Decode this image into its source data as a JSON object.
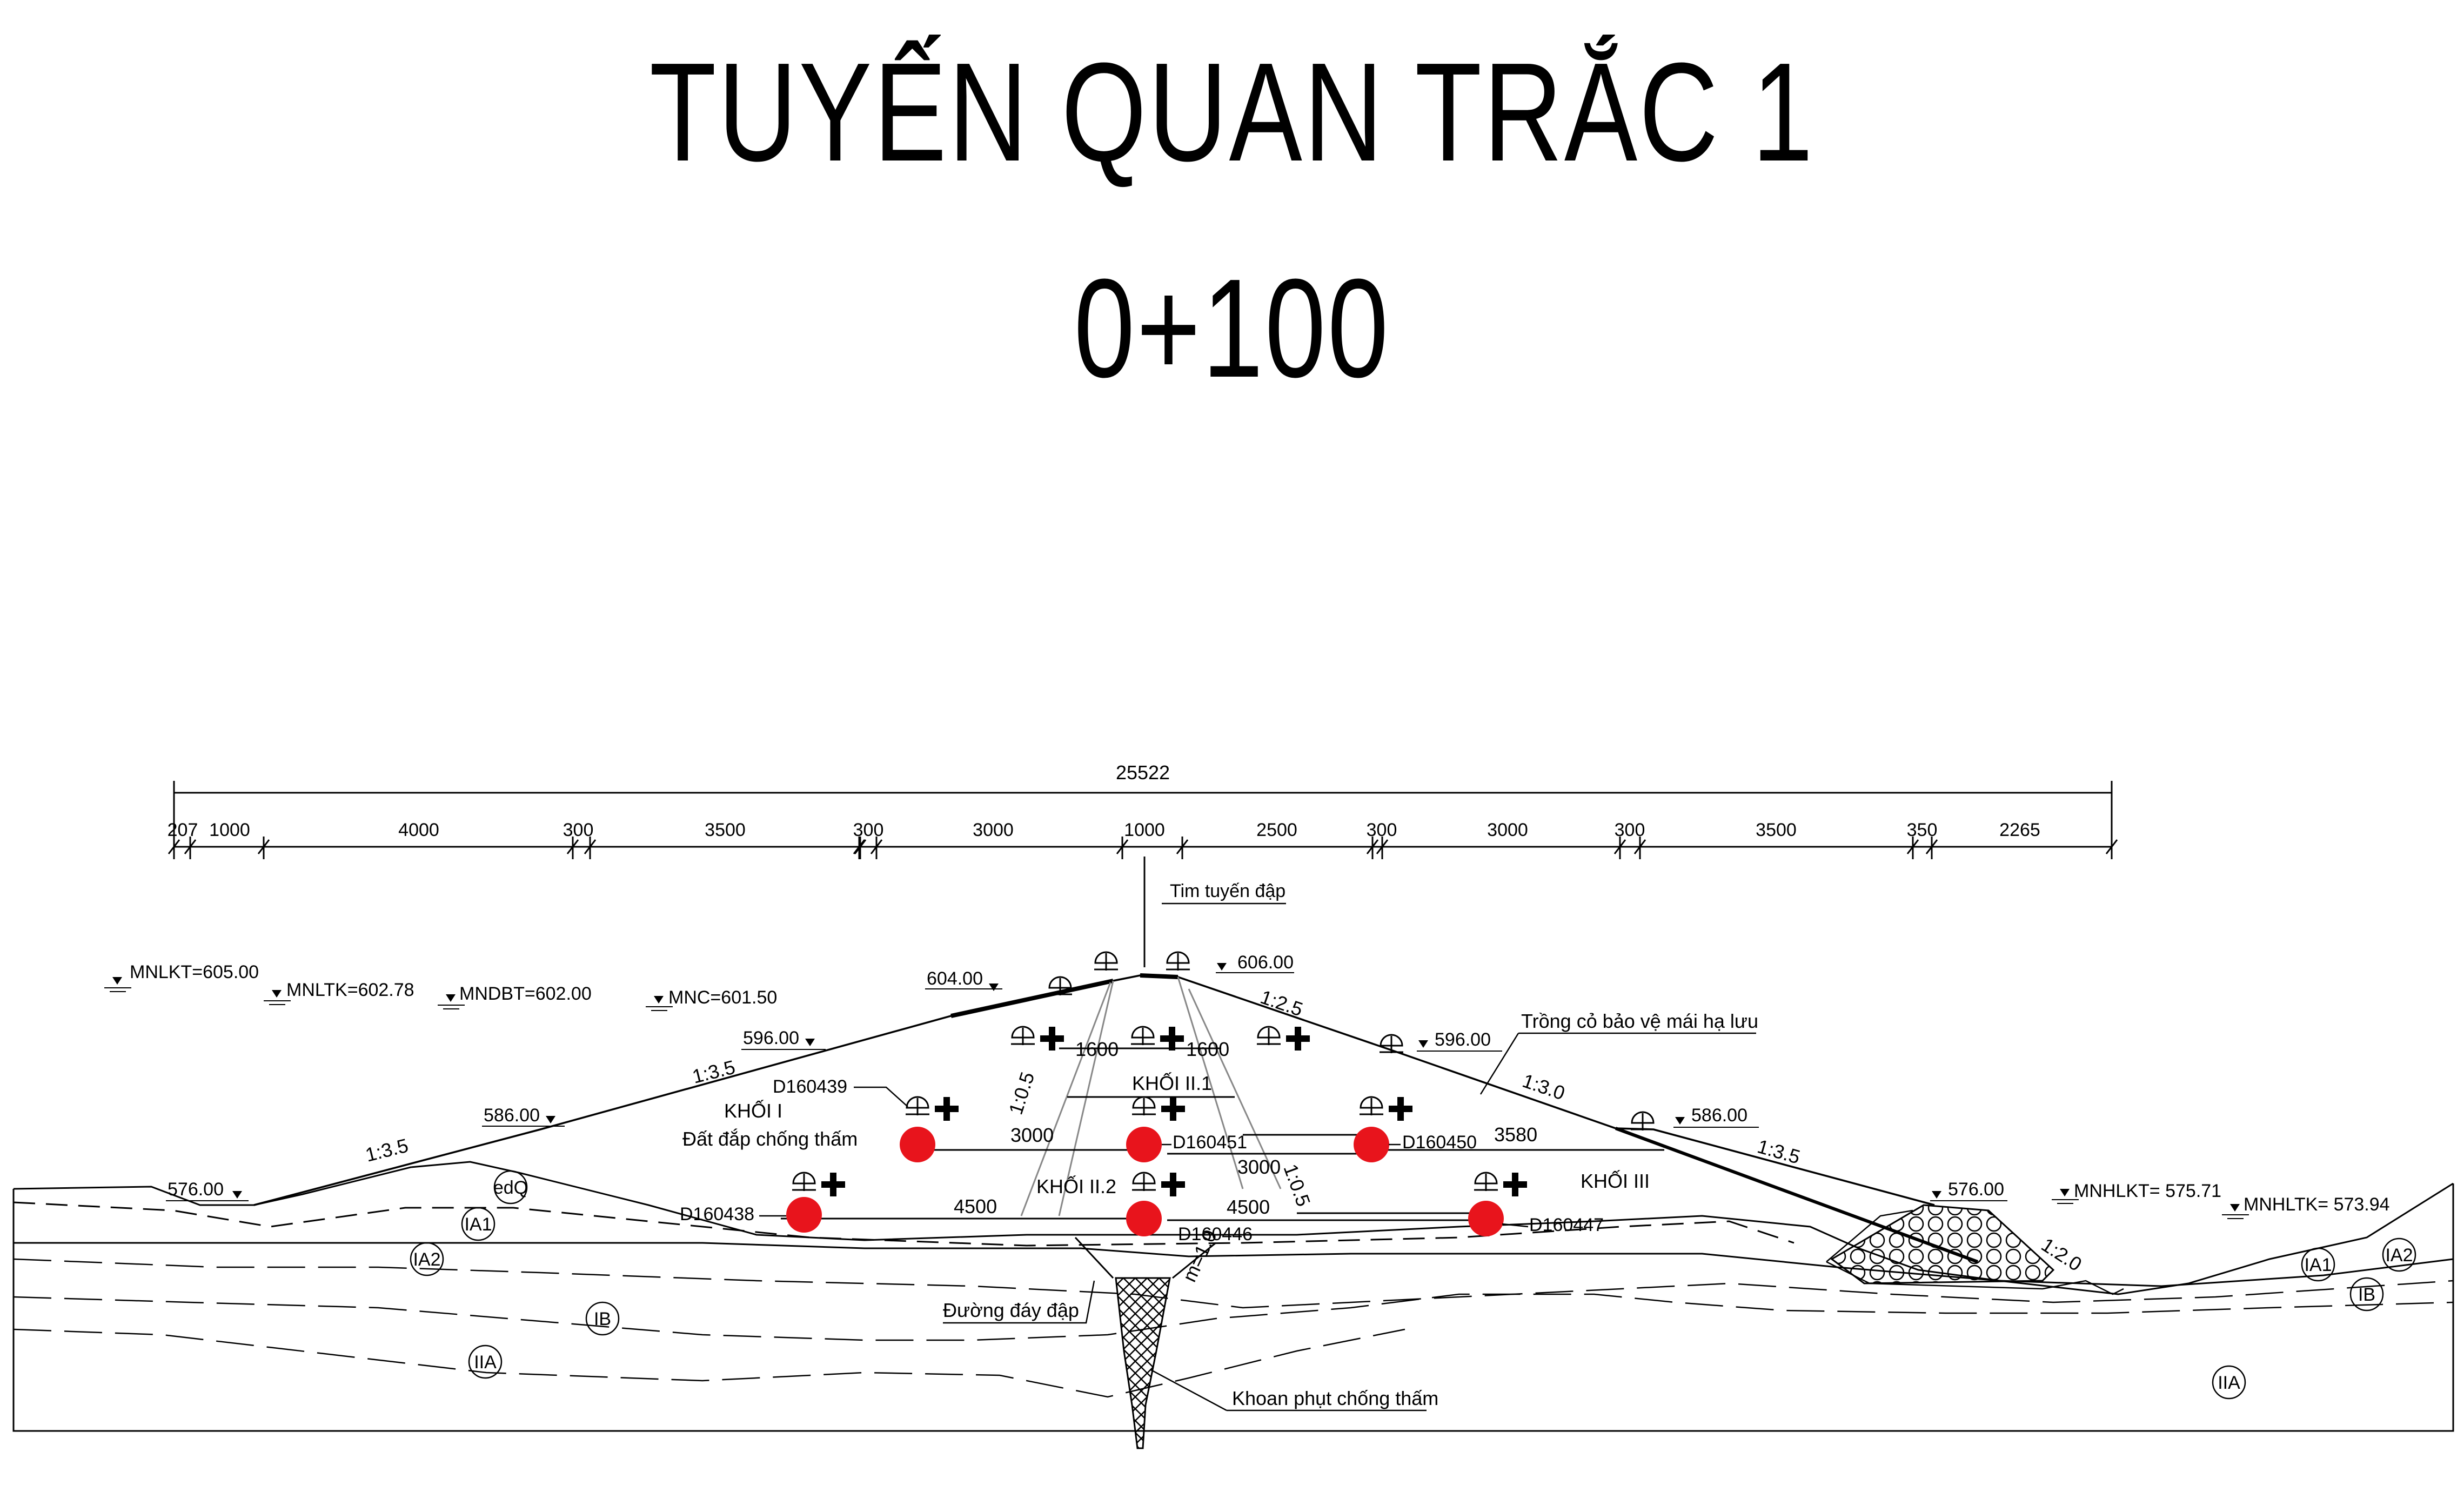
{
  "title": "TUYẾN QUAN TRẮC 1",
  "station": "0+100",
  "total_dimension": "25522",
  "segments": [
    "207",
    "1000",
    "4000",
    "300",
    "3500",
    "300",
    "3000",
    "1000",
    "2500",
    "300",
    "3000",
    "300",
    "3500",
    "350",
    "2265"
  ],
  "water_levels": {
    "mnlkt": "MNLKT=605.00",
    "mnltk": "MNLTK=602.78",
    "mndbt": "MNDBT=602.00",
    "mnc": "MNC=601.50",
    "mnhlkt": "MNHLKT= 575.71",
    "mnhltk": "MNHLTK= 573.94"
  },
  "elevations": {
    "e604": "604.00",
    "e606": "606.00",
    "e596l": "596.00",
    "e596r": "596.00",
    "e586l": "586.00",
    "e586r": "586.00",
    "e576l": "576.00",
    "e576r": "576.00"
  },
  "slopes": {
    "s1": "1:3.5",
    "s2": "1:3.5",
    "s3": "1:2.5",
    "s4": "1:3.0",
    "s5": "1:3.5",
    "s6": "1:2.0",
    "s7": "1:0.5",
    "s8": "1:0.5",
    "s9": "m=1.0"
  },
  "inner_dims": {
    "d1600a": "1600",
    "d1600b": "1600",
    "d3000a": "3000",
    "d3000b": "3000",
    "d3580": "3580",
    "d4500a": "4500",
    "d4500b": "4500"
  },
  "labels": {
    "axis": "Tim tuyến đập",
    "downstream_grass": "Trồng cỏ bảo vệ mái hạ lưu",
    "block1": "KHỐI I",
    "block1_sub": "Đất đắp chống thấm",
    "block21": "KHỐI II.1",
    "block22": "KHỐI II.2",
    "block3": "KHỐI III",
    "dam_bottom": "Đường đáy đập",
    "grout": "Khoan phụt chống thấm"
  },
  "sensors": [
    "D160439",
    "D160451",
    "D160450",
    "D160438",
    "D160446",
    "D160447"
  ],
  "soil_layers": {
    "edq": "edQ",
    "ia1": "IA1",
    "ia2": "IA2",
    "ib": "IB",
    "iia": "IIA",
    "ia1r": "IA1",
    "ia2r": "IA2",
    "ibr": "IB",
    "iiar": "IIA"
  },
  "colors": {
    "sensor": "#e8141c",
    "line": "#000000",
    "ground": "#5a5a5a"
  }
}
